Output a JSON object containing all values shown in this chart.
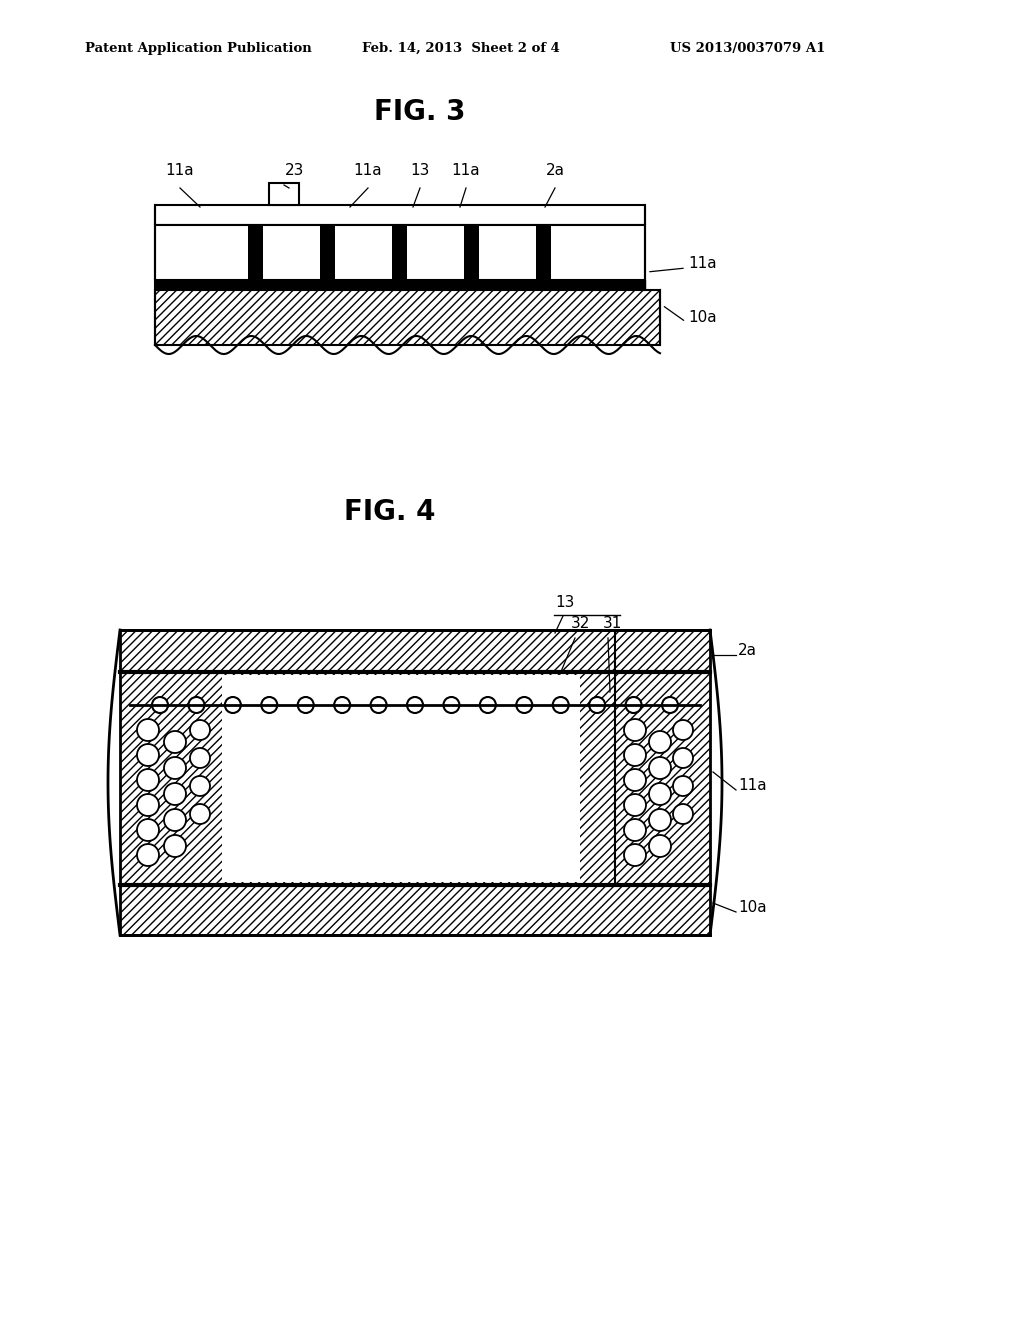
{
  "title_header": "Patent Application Publication",
  "date_header": "Feb. 14, 2013  Sheet 2 of 4",
  "patent_header": "US 2013/0037079 A1",
  "fig3_title": "FIG. 3",
  "fig4_title": "FIG. 4",
  "background_color": "#ffffff",
  "line_color": "#000000"
}
